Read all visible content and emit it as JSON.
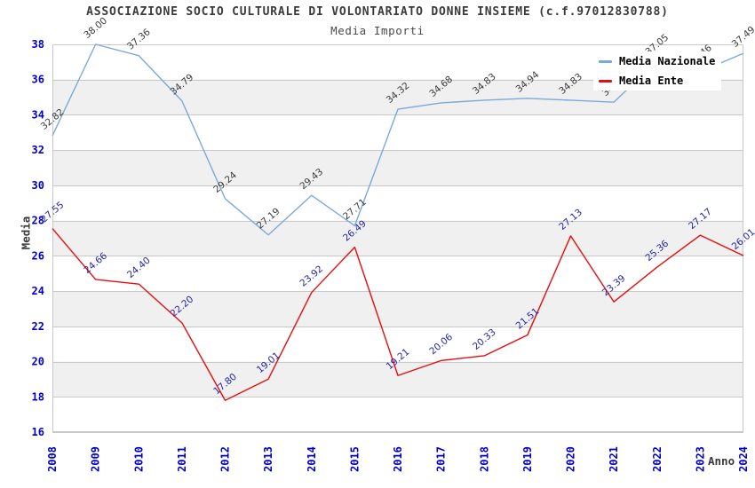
{
  "header": {
    "title": "ASSOCIAZIONE SOCIO CULTURALE DI VOLONTARIATO DONNE INSIEME (c.f.97012830788)",
    "subtitle": "Media Importi"
  },
  "chart_data": {
    "type": "line",
    "title": "ASSOCIAZIONE SOCIO CULTURALE DI VOLONTARIATO DONNE INSIEME (c.f.97012830788)",
    "subtitle": "Media Importi",
    "xlabel": "Anno",
    "ylabel": "Media",
    "categories": [
      "2008",
      "2009",
      "2010",
      "2011",
      "2012",
      "2013",
      "2014",
      "2015",
      "2016",
      "2017",
      "2018",
      "2019",
      "2020",
      "2021",
      "2022",
      "2023",
      "2024"
    ],
    "series": [
      {
        "name": "Media Nazionale",
        "color": "#7aa9dd",
        "label_color": "#3a3a3a",
        "values": [
          32.82,
          38.0,
          37.36,
          34.79,
          29.24,
          27.19,
          29.43,
          27.71,
          34.32,
          34.68,
          34.83,
          34.94,
          34.83,
          34.72,
          37.05,
          36.46,
          37.49
        ]
      },
      {
        "name": "Media Ente",
        "color": "#e60d0d",
        "label_color": "#2525a8",
        "values": [
          27.55,
          24.66,
          24.4,
          22.2,
          17.8,
          19.01,
          23.92,
          26.49,
          19.21,
          20.06,
          20.33,
          21.51,
          27.13,
          23.39,
          25.36,
          27.17,
          26.01
        ]
      }
    ],
    "ylim": [
      16,
      38
    ],
    "ytick_step": 2,
    "grid": true,
    "legend_position": "top-right",
    "colors": {
      "axis_tick_text": "#0000cc",
      "gridline": "#c8c8c8",
      "band_alt_fill": "#f0f0f0",
      "plot_background": "#ffffff"
    }
  }
}
